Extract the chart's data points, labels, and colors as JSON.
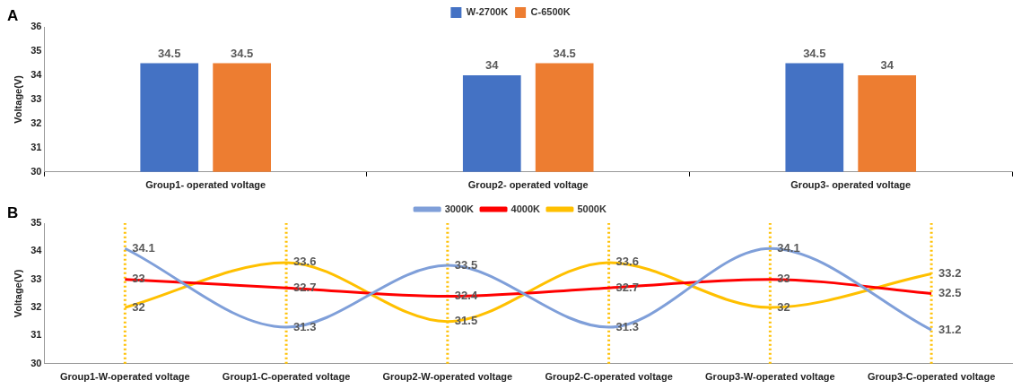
{
  "chart_data": [
    {
      "type": "bar",
      "annotations": [
        "A"
      ],
      "ylabel": "Voltage(V)",
      "categories": [
        "Group1- operated voltage",
        "Group2- operated voltage",
        "Group3- operated voltage"
      ],
      "series": [
        {
          "name": "W-2700K",
          "color": "#4472c4",
          "values": [
            34.5,
            34,
            34.5
          ]
        },
        {
          "name": "C-6500K",
          "color": "#ed7d31",
          "values": [
            34.5,
            34.5,
            34
          ]
        }
      ],
      "ylim": [
        30,
        36
      ],
      "yticks": [
        30,
        31,
        32,
        33,
        34,
        35,
        36
      ],
      "grid": false,
      "legend": "top",
      "data_labels": true
    },
    {
      "type": "line",
      "annotations": [
        "B"
      ],
      "ylabel": "Voltage(V)",
      "categories": [
        "Group1-W-operated voltage",
        "Group1-C-operated voltage",
        "Group2-W-operated voltage",
        "Group2-C-operated voltage",
        "Group3-W-operated voltage",
        "Group3-C-operated voltage"
      ],
      "series": [
        {
          "name": "3000K",
          "color": "#7f9fd9",
          "values": [
            34.1,
            31.3,
            33.5,
            31.3,
            34.1,
            31.2
          ]
        },
        {
          "name": "4000K",
          "color": "#ff0000",
          "values": [
            33,
            32.7,
            32.4,
            32.7,
            33,
            32.5
          ]
        },
        {
          "name": "5000K",
          "color": "#ffc000",
          "values": [
            32,
            33.6,
            31.5,
            33.6,
            32,
            33.2
          ]
        }
      ],
      "ylim": [
        30,
        35
      ],
      "yticks": [
        30,
        31,
        32,
        33,
        34,
        35
      ],
      "grid": false,
      "legend": "top",
      "marker": "none",
      "data_labels": true,
      "ref_lines": [
        {
          "axis": "x",
          "value": "Group1-W-operated voltage",
          "color": "#ffc000",
          "line_style": "dotted"
        },
        {
          "axis": "x",
          "value": "Group1-C-operated voltage",
          "color": "#ffc000",
          "line_style": "dotted"
        },
        {
          "axis": "x",
          "value": "Group2-W-operated voltage",
          "color": "#ffc000",
          "line_style": "dotted"
        },
        {
          "axis": "x",
          "value": "Group2-C-operated voltage",
          "color": "#ffc000",
          "line_style": "dotted"
        },
        {
          "axis": "x",
          "value": "Group3-W-operated voltage",
          "color": "#ffc000",
          "line_style": "dotted"
        },
        {
          "axis": "x",
          "value": "Group3-C-operated voltage",
          "color": "#ffc000",
          "line_style": "dotted"
        }
      ]
    }
  ]
}
